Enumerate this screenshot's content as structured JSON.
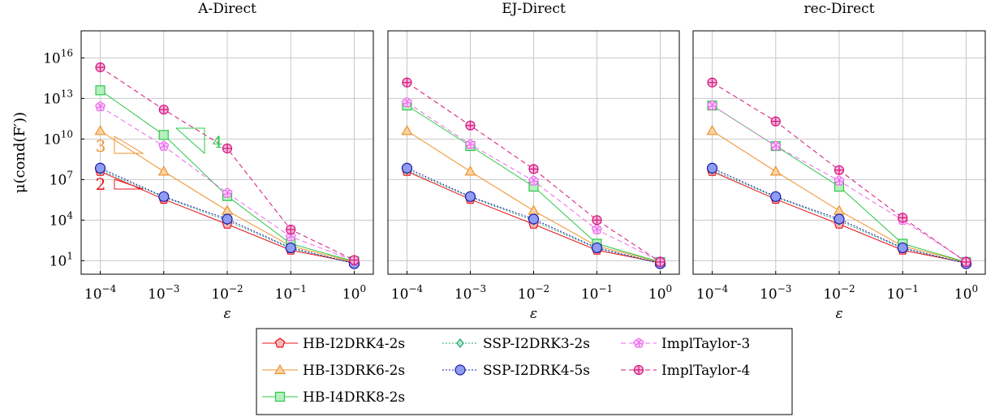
{
  "figure": {
    "ylabel": "μ(cond(F′))",
    "xlabel": "ε"
  },
  "chart_data": [
    {
      "type": "line",
      "title": "A-Direct",
      "xlabel": "ε",
      "ylabel": "μ(cond(F′))",
      "xscale": "log",
      "yscale": "log",
      "xlim": [
        5e-05,
        2
      ],
      "ylim": [
        1,
        1e+18
      ],
      "x": [
        0.0001,
        0.001,
        0.01,
        0.1,
        1
      ],
      "xticklabels": [
        "10^-4",
        "10^-3",
        "10^-2",
        "10^-1",
        "10^0"
      ],
      "yticks": [
        10,
        10000,
        10000000,
        10000000000,
        10000000000000,
        10000000000000000
      ],
      "yticklabels": [
        "10^1",
        "10^4",
        "10^7",
        "10^10",
        "10^13",
        "10^16"
      ],
      "grid": true,
      "series": [
        {
          "name": "HB-I2DRK4-2s",
          "values": [
            40000000.0,
            350000.0,
            5000.0,
            60.0,
            7
          ]
        },
        {
          "name": "HB-I3DRK6-2s",
          "values": [
            40000000000.0,
            40000000.0,
            50000.0,
            120.0,
            8
          ]
        },
        {
          "name": "HB-I4DRK8-2s",
          "values": [
            40000000000000.0,
            20000000000.0,
            600000.0,
            180.0,
            9
          ]
        },
        {
          "name": "SSP-I2DRK3-2s",
          "values": [
            50000000.0,
            500000.0,
            9000.0,
            80.0,
            7
          ]
        },
        {
          "name": "SSP-I2DRK4-5s",
          "values": [
            70000000.0,
            550000.0,
            12000.0,
            90.0,
            6
          ]
        },
        {
          "name": "ImplTaylor-3",
          "values": [
            2500000000000.0,
            3000000000.0,
            1000000.0,
            600.0,
            10
          ]
        },
        {
          "name": "ImplTaylor-4",
          "values": [
            2000000000000000.0,
            1500000000000.0,
            2000000000.0,
            2000.0,
            11
          ]
        }
      ],
      "annotations": [
        {
          "text": "3",
          "note": "slope triangle"
        },
        {
          "text": "2",
          "note": "slope triangle"
        },
        {
          "text": "4",
          "note": "slope triangle"
        }
      ]
    },
    {
      "type": "line",
      "title": "EJ-Direct",
      "xlabel": "ε",
      "xscale": "log",
      "yscale": "log",
      "xlim": [
        5e-05,
        2
      ],
      "ylim": [
        1,
        1e+18
      ],
      "x": [
        0.0001,
        0.001,
        0.01,
        0.1,
        1
      ],
      "xticklabels": [
        "10^-4",
        "10^-3",
        "10^-2",
        "10^-1",
        "10^0"
      ],
      "grid": true,
      "series": [
        {
          "name": "HB-I2DRK4-2s",
          "values": [
            40000000.0,
            350000.0,
            5000.0,
            60.0,
            7
          ]
        },
        {
          "name": "HB-I3DRK6-2s",
          "values": [
            40000000000.0,
            40000000.0,
            50000.0,
            120.0,
            8
          ]
        },
        {
          "name": "HB-I4DRK8-2s",
          "values": [
            3000000000000.0,
            3000000000.0,
            3000000.0,
            180.0,
            8
          ]
        },
        {
          "name": "SSP-I2DRK3-2s",
          "values": [
            50000000.0,
            500000.0,
            9000.0,
            80.0,
            7
          ]
        },
        {
          "name": "SSP-I2DRK4-5s",
          "values": [
            70000000.0,
            550000.0,
            12000.0,
            90.0,
            6
          ]
        },
        {
          "name": "ImplTaylor-3",
          "values": [
            5000000000000.0,
            4000000000.0,
            8000000.0,
            2000.0,
            9
          ]
        },
        {
          "name": "ImplTaylor-4",
          "values": [
            150000000000000.0,
            100000000000.0,
            60000000.0,
            10000.0,
            8
          ]
        }
      ]
    },
    {
      "type": "line",
      "title": "rec-Direct",
      "xlabel": "ε",
      "xscale": "log",
      "yscale": "log",
      "xlim": [
        5e-05,
        2
      ],
      "ylim": [
        1,
        1e+18
      ],
      "x": [
        0.0001,
        0.001,
        0.01,
        0.1,
        1
      ],
      "xticklabels": [
        "10^-4",
        "10^-3",
        "10^-2",
        "10^-1",
        "10^0"
      ],
      "grid": true,
      "series": [
        {
          "name": "HB-I2DRK4-2s",
          "values": [
            40000000.0,
            350000.0,
            5000.0,
            60.0,
            7
          ]
        },
        {
          "name": "HB-I3DRK6-2s",
          "values": [
            40000000000.0,
            40000000.0,
            50000.0,
            120.0,
            8
          ]
        },
        {
          "name": "HB-I4DRK8-2s",
          "values": [
            3000000000000.0,
            3000000000.0,
            3000000.0,
            180.0,
            8
          ]
        },
        {
          "name": "SSP-I2DRK3-2s",
          "values": [
            50000000.0,
            500000.0,
            9000.0,
            80.0,
            7
          ]
        },
        {
          "name": "SSP-I2DRK4-5s",
          "values": [
            70000000.0,
            550000.0,
            12000.0,
            90.0,
            6
          ]
        },
        {
          "name": "ImplTaylor-3",
          "values": [
            3000000000000.0,
            3000000000.0,
            8000000.0,
            10000.0,
            9
          ]
        },
        {
          "name": "ImplTaylor-4",
          "values": [
            150000000000000.0,
            200000000000.0,
            50000000.0,
            15000.0,
            8
          ]
        }
      ]
    }
  ],
  "legend": {
    "placement": "bottom",
    "entries": [
      {
        "name": "HB-I2DRK4-2s",
        "color": "#e8121b",
        "marker": "pentagon",
        "dash": "solid"
      },
      {
        "name": "SSP-I2DRK3-2s",
        "color": "#1ca56e",
        "marker": "diamond",
        "dash": "dotted"
      },
      {
        "name": "ImplTaylor-3",
        "color": "#ec67ec",
        "marker": "flower",
        "dash": "dashed"
      },
      {
        "name": "HB-I3DRK6-2s",
        "color": "#f0902c",
        "marker": "triangle",
        "dash": "solid"
      },
      {
        "name": "SSP-I2DRK4-5s",
        "color": "#1a1aa8",
        "marker": "circle",
        "dash": "dotted"
      },
      {
        "name": "ImplTaylor-4",
        "color": "#d6147f",
        "marker": "cross",
        "dash": "dashed"
      },
      {
        "name": "HB-I4DRK8-2s",
        "color": "#2ec84a",
        "marker": "square",
        "dash": "solid"
      }
    ]
  }
}
